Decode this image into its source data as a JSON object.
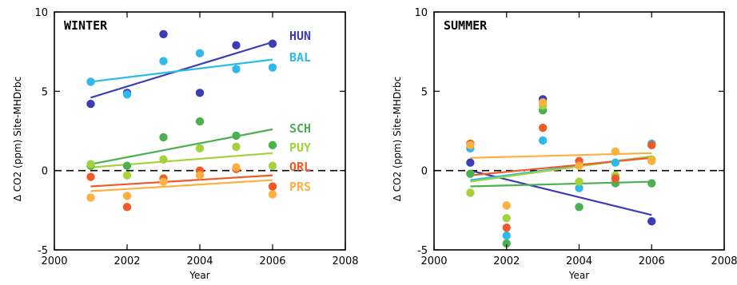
{
  "chart_data": [
    {
      "type": "scatter",
      "title": "WINTER",
      "xlabel": "Year",
      "ylabel": "Δ CO2 (ppm) Site-MHDrbc",
      "xlim": [
        2000,
        2008
      ],
      "ylim": [
        -5,
        10
      ],
      "xticks": [
        2000,
        2002,
        2004,
        2006,
        2008
      ],
      "yticks": [
        -5,
        0,
        5,
        10
      ],
      "reference_line": 0,
      "series": [
        {
          "name": "HUN",
          "color": "#3c3cb4",
          "x": [
            2001,
            2002,
            2003,
            2004,
            2005,
            2006
          ],
          "y": [
            4.2,
            4.9,
            8.6,
            4.9,
            7.9,
            8.0
          ],
          "trend": [
            [
              2001,
              4.6
            ],
            [
              2006,
              8.1
            ]
          ]
        },
        {
          "name": "BAL",
          "color": "#2fb9ea",
          "x": [
            2001,
            2002,
            2003,
            2004,
            2005,
            2006
          ],
          "y": [
            5.6,
            4.8,
            6.9,
            7.4,
            6.4,
            6.5
          ],
          "trend": [
            [
              2001,
              5.6
            ],
            [
              2006,
              7.0
            ]
          ]
        },
        {
          "name": "SCH",
          "color": "#4caf50",
          "x": [
            2001,
            2002,
            2003,
            2004,
            2005,
            2006
          ],
          "y": [
            0.3,
            0.3,
            2.1,
            3.1,
            2.2,
            1.6
          ],
          "trend": [
            [
              2001,
              0.4
            ],
            [
              2006,
              2.6
            ]
          ]
        },
        {
          "name": "PUY",
          "color": "#a4d23c",
          "x": [
            2001,
            2002,
            2003,
            2004,
            2005,
            2006
          ],
          "y": [
            0.4,
            -0.3,
            0.7,
            1.4,
            1.5,
            0.3
          ],
          "trend": [
            [
              2001,
              0.2
            ],
            [
              2006,
              1.1
            ]
          ]
        },
        {
          "name": "ORL",
          "color": "#f05a28",
          "x": [
            2001,
            2002,
            2003,
            2004,
            2005,
            2006
          ],
          "y": [
            -0.4,
            -2.3,
            -0.5,
            0.0,
            0.1,
            -1.0
          ],
          "trend": [
            [
              2001,
              -1.0
            ],
            [
              2006,
              -0.3
            ]
          ]
        },
        {
          "name": "PRS",
          "color": "#fbb040",
          "x": [
            2001,
            2002,
            2003,
            2004,
            2005,
            2006
          ],
          "y": [
            -1.7,
            -1.6,
            -0.7,
            -0.3,
            0.2,
            -1.5
          ],
          "trend": [
            [
              2001,
              -1.3
            ],
            [
              2006,
              -0.6
            ]
          ]
        }
      ]
    },
    {
      "type": "scatter",
      "title": "SUMMER",
      "xlabel": "Year",
      "ylabel": "Δ CO2 (ppm) Site-MHDrbc",
      "xlim": [
        2000,
        2008
      ],
      "ylim": [
        -5,
        10
      ],
      "xticks": [
        2000,
        2002,
        2004,
        2006,
        2008
      ],
      "yticks": [
        -5,
        0,
        5,
        10
      ],
      "reference_line": 0,
      "series": [
        {
          "name": "HUN",
          "color": "#3c3cb4",
          "x": [
            2001,
            2003,
            2006
          ],
          "y": [
            0.5,
            4.5,
            -3.2
          ],
          "trend": [
            [
              2001,
              0.0
            ],
            [
              2006,
              -2.8
            ]
          ]
        },
        {
          "name": "BAL",
          "color": "#2fb9ea",
          "x": [
            2001,
            2002,
            2003,
            2004,
            2005,
            2006
          ],
          "y": [
            1.4,
            -4.1,
            1.9,
            -1.1,
            0.5,
            1.7
          ],
          "trend": [
            [
              2001,
              -0.6
            ],
            [
              2006,
              0.9
            ]
          ]
        },
        {
          "name": "SCH",
          "color": "#4caf50",
          "x": [
            2001,
            2002,
            2003,
            2004,
            2005,
            2006
          ],
          "y": [
            -0.2,
            -4.6,
            3.8,
            -2.3,
            -0.8,
            -0.8
          ],
          "trend": [
            [
              2001,
              -1.0
            ],
            [
              2006,
              -0.7
            ]
          ]
        },
        {
          "name": "PUY",
          "color": "#a4d23c",
          "x": [
            2001,
            2002,
            2003,
            2004,
            2005,
            2006
          ],
          "y": [
            -1.4,
            -3.0,
            4.1,
            -0.7,
            -0.3,
            0.7
          ],
          "trend": [
            [
              2001,
              -0.7
            ],
            [
              2006,
              0.9
            ]
          ]
        },
        {
          "name": "ORL",
          "color": "#f05a28",
          "x": [
            2001,
            2002,
            2003,
            2004,
            2005,
            2006
          ],
          "y": [
            1.7,
            -3.6,
            2.7,
            0.6,
            -0.5,
            1.6
          ],
          "trend": [
            [
              2001,
              -0.3
            ],
            [
              2006,
              0.8
            ]
          ]
        },
        {
          "name": "PRS",
          "color": "#fbb040",
          "x": [
            2001,
            2002,
            2003,
            2004,
            2005,
            2006
          ],
          "y": [
            1.6,
            -2.2,
            4.3,
            0.3,
            1.2,
            0.6
          ],
          "trend": [
            [
              2001,
              0.8
            ],
            [
              2006,
              1.1
            ]
          ]
        }
      ]
    }
  ]
}
